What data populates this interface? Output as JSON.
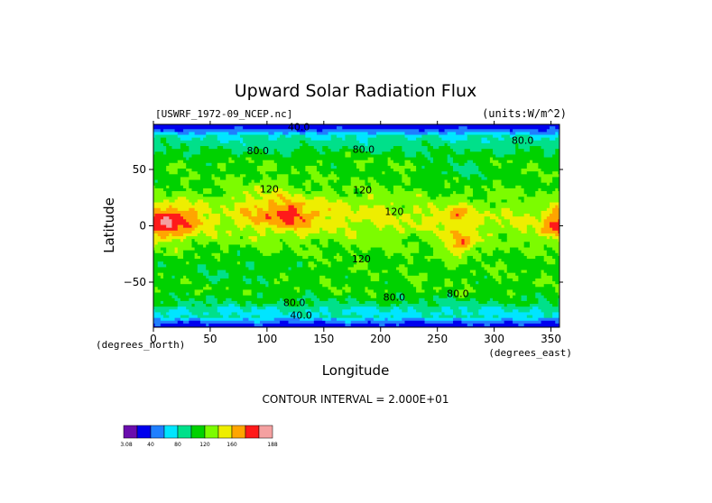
{
  "chart_data": {
    "type": "heatmap",
    "title": "Upward Solar Radiation Flux",
    "file_label": "[USWRF_1972-09_NCEP.nc]",
    "units_label": "(units:W/m^2)",
    "xlabel": "Longitude",
    "ylabel": "Latitude",
    "x_unit_label": "(degrees_east)",
    "y_unit_label": "(degrees_north)",
    "xlim": [
      0,
      357.5
    ],
    "ylim": [
      -90,
      90
    ],
    "x_ticks": [
      0,
      50,
      100,
      150,
      200,
      250,
      300,
      350
    ],
    "y_ticks": [
      50,
      0,
      -50
    ],
    "contour_interval_text": "CONTOUR INTERVAL = 2.000E+01",
    "contour_labels": [
      {
        "text": "40.0",
        "lon": 128,
        "lat": 88
      },
      {
        "text": "80.0",
        "lon": 92,
        "lat": 67
      },
      {
        "text": "80.0",
        "lon": 185,
        "lat": 68
      },
      {
        "text": "80.0",
        "lon": 325,
        "lat": 76
      },
      {
        "text": "120",
        "lon": 102,
        "lat": 33
      },
      {
        "text": "120",
        "lon": 184,
        "lat": 32
      },
      {
        "text": "120",
        "lon": 212,
        "lat": 13
      },
      {
        "text": "120",
        "lon": 183,
        "lat": -29
      },
      {
        "text": "80.0",
        "lon": 124,
        "lat": -68
      },
      {
        "text": "80.0",
        "lon": 212,
        "lat": -63
      },
      {
        "text": "80.0",
        "lon": 268,
        "lat": -60
      },
      {
        "text": "40.0",
        "lon": 130,
        "lat": -79
      }
    ],
    "colorbar": {
      "labels": [
        "3.08",
        "40",
        "80",
        "120",
        "160",
        "188"
      ],
      "colors": [
        "#6a0dad",
        "#0000ee",
        "#1f7fff",
        "#00e5ff",
        "#00e08a",
        "#00d200",
        "#7cfc00",
        "#eeee00",
        "#ffa500",
        "#ff1a1a",
        "#f4a0a0"
      ]
    },
    "levels": [
      20,
      40,
      60,
      80,
      100,
      120,
      140,
      160,
      180
    ],
    "value_range": [
      3.08,
      188
    ]
  }
}
